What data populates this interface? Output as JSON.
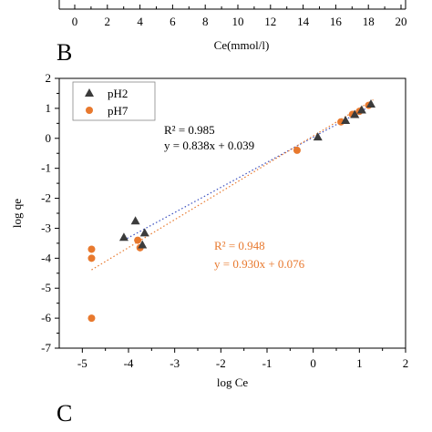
{
  "panel_labels": {
    "top": "B",
    "bottom": "C"
  },
  "top_axis": {
    "xlabel": "Ce(mmol/l)",
    "ticks": [
      "0",
      "2",
      "4",
      "6",
      "8",
      "10",
      "12",
      "14",
      "16",
      "18",
      "20"
    ]
  },
  "colors": {
    "ph2": "#3b3b3b",
    "ph7": "#E8792E",
    "fit_ph2": "#3b4fbf",
    "fit_ph7": "#E8792E"
  },
  "markers": {
    "ph2": "triangle",
    "ph7": "circle"
  },
  "chart_data": {
    "type": "scatter",
    "xlabel": "log Ce",
    "ylabel": "log qe",
    "xlim": [
      -5.5,
      2
    ],
    "ylim": [
      -7,
      2
    ],
    "xticks": [
      "-5",
      "-4",
      "-3",
      "-2",
      "-1",
      "0",
      "1",
      "2"
    ],
    "yticks": [
      "2",
      "1",
      "0",
      "-1",
      "-2",
      "-3",
      "-4",
      "-5",
      "-6",
      "-7"
    ],
    "grid": false,
    "legend_position": "top-left",
    "series": [
      {
        "name": "pH2",
        "x": [
          -4.1,
          -3.85,
          -3.7,
          -3.65,
          0.1,
          0.7,
          0.9,
          1.05,
          1.25
        ],
        "y": [
          -3.3,
          -2.75,
          -3.55,
          -3.15,
          0.05,
          0.6,
          0.8,
          0.95,
          1.15
        ]
      },
      {
        "name": "pH7",
        "x": [
          -4.8,
          -4.8,
          -4.8,
          -3.8,
          -3.75,
          -0.35,
          0.6,
          0.85,
          1.0,
          1.2
        ],
        "y": [
          -3.7,
          -4.0,
          -6.0,
          -3.4,
          -3.65,
          -0.4,
          0.55,
          0.8,
          0.9,
          1.1
        ]
      }
    ],
    "fits": [
      {
        "series": "pH2",
        "r2_label": "R² = 0.985",
        "equation": "y = 0.838x + 0.039",
        "slope": 0.838,
        "intercept": 0.039,
        "x_range": [
          -4.1,
          1.3
        ]
      },
      {
        "series": "pH7",
        "r2_label": "R² = 0.948",
        "equation": "y = 0.930x + 0.076",
        "slope": 0.93,
        "intercept": 0.076,
        "x_range": [
          -4.8,
          1.3
        ]
      }
    ]
  }
}
